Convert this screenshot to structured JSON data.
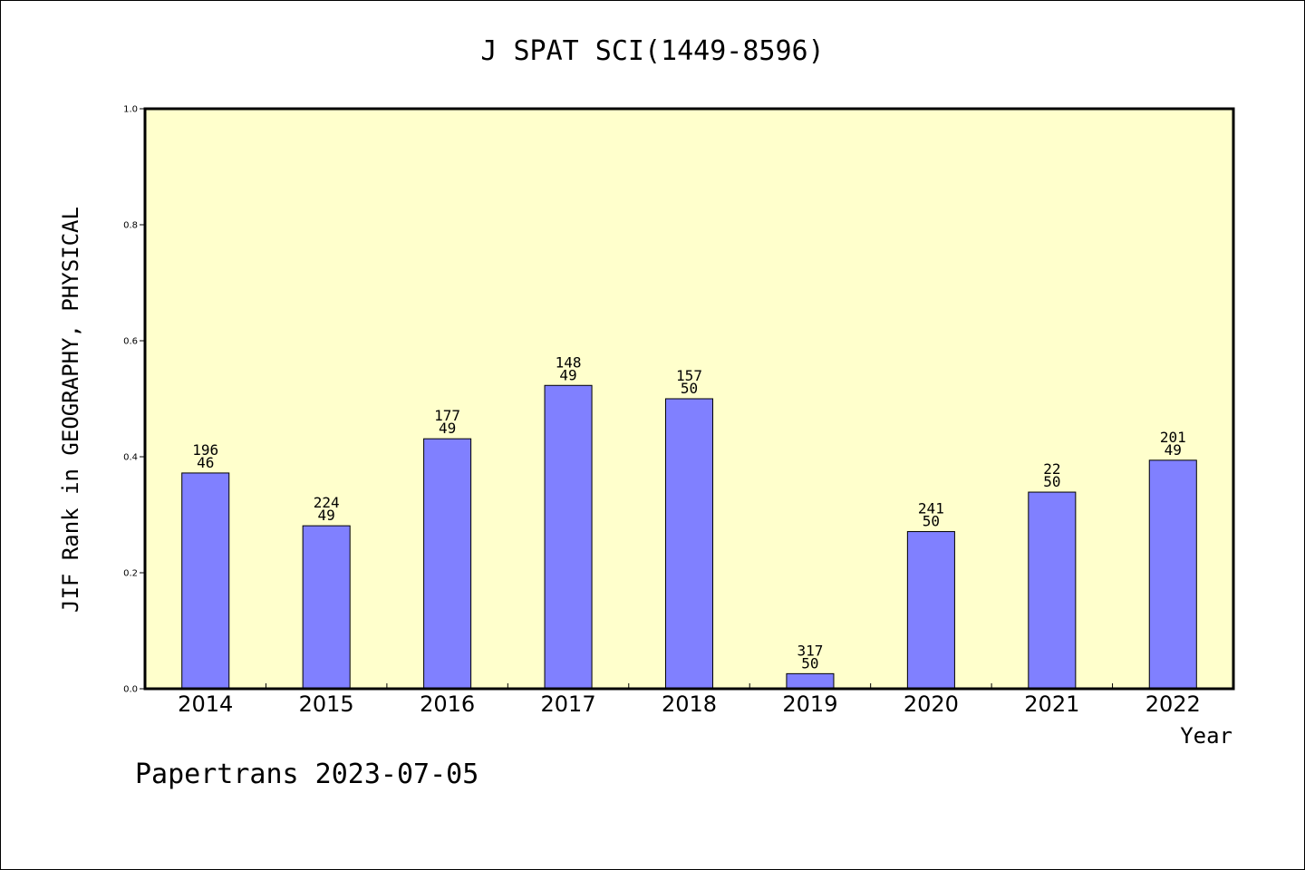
{
  "chart_data": {
    "type": "bar",
    "title": "J SPAT SCI(1449-8596)",
    "xlabel": "Year",
    "ylabel": "JIF Rank in GEOGRAPHY, PHYSICAL",
    "ylim": [
      0,
      1.0
    ],
    "yticks": [
      "0.0",
      "0.2",
      "0.4",
      "0.6",
      "0.8",
      "1.0"
    ],
    "categories": [
      "2014",
      "2015",
      "2016",
      "2017",
      "2018",
      "2019",
      "2020",
      "2021",
      "2022"
    ],
    "values": [
      0.372,
      0.281,
      0.431,
      0.523,
      0.5,
      0.026,
      0.271,
      0.339,
      0.394
    ],
    "labels_top": [
      "196",
      "224",
      "177",
      "148",
      "157",
      "317",
      "241",
      "22",
      "201"
    ],
    "labels_bottom": [
      "46",
      "49",
      "49",
      "49",
      "50",
      "50",
      "50",
      "50",
      "49"
    ],
    "grid": false,
    "colors": {
      "bar": "#8080ff",
      "plot_background": "#ffffcc",
      "axis": "#000000"
    }
  },
  "footer": "Papertrans 2023-07-05"
}
